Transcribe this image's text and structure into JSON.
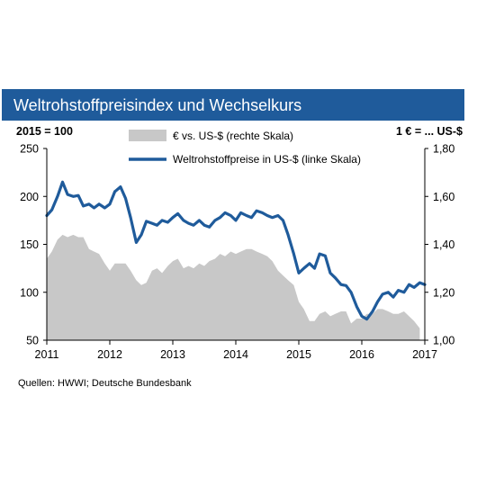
{
  "title": "Weltrohstoffpreisindex und Wechselkurs",
  "unit_left": "2015 = 100",
  "unit_right": "1 € = ... US-$",
  "source": "Quellen: HWWI; Deutsche Bundesbank",
  "chart_data": {
    "type": "line",
    "x_ticks": [
      "2011",
      "2012",
      "2013",
      "2014",
      "2015",
      "2016",
      "2017"
    ],
    "x_range": [
      2011,
      2017
    ],
    "y_left": {
      "ticks": [
        "250",
        "200",
        "150",
        "100",
        "50"
      ],
      "range": [
        50,
        250
      ]
    },
    "y_right": {
      "ticks": [
        "1,80",
        "1,60",
        "1,40",
        "1,20",
        "1,00"
      ],
      "range": [
        1.0,
        1.8
      ]
    },
    "grid": false,
    "series": [
      {
        "name": "€ vs. US-$ (rechte Skala)",
        "type": "area",
        "axis": "right",
        "color": "#c8c8c8",
        "x": [
          2011.0,
          2011.08,
          2011.17,
          2011.25,
          2011.33,
          2011.42,
          2011.5,
          2011.58,
          2011.67,
          2011.75,
          2011.83,
          2011.92,
          2012.0,
          2012.08,
          2012.17,
          2012.25,
          2012.33,
          2012.42,
          2012.5,
          2012.58,
          2012.67,
          2012.75,
          2012.83,
          2012.92,
          2013.0,
          2013.08,
          2013.17,
          2013.25,
          2013.33,
          2013.42,
          2013.5,
          2013.58,
          2013.67,
          2013.75,
          2013.83,
          2013.92,
          2014.0,
          2014.08,
          2014.17,
          2014.25,
          2014.33,
          2014.42,
          2014.5,
          2014.58,
          2014.67,
          2014.75,
          2014.83,
          2014.92,
          2015.0,
          2015.08,
          2015.17,
          2015.25,
          2015.33,
          2015.42,
          2015.5,
          2015.58,
          2015.67,
          2015.75,
          2015.83,
          2015.92,
          2016.0,
          2016.08,
          2016.17,
          2016.25,
          2016.33,
          2016.42,
          2016.5,
          2016.58,
          2016.67,
          2016.75,
          2016.83,
          2016.92
        ],
        "values": [
          1.34,
          1.37,
          1.42,
          1.44,
          1.43,
          1.44,
          1.43,
          1.43,
          1.38,
          1.37,
          1.36,
          1.32,
          1.29,
          1.32,
          1.32,
          1.32,
          1.29,
          1.25,
          1.23,
          1.24,
          1.29,
          1.3,
          1.28,
          1.31,
          1.33,
          1.34,
          1.3,
          1.31,
          1.3,
          1.32,
          1.31,
          1.33,
          1.34,
          1.36,
          1.35,
          1.37,
          1.36,
          1.37,
          1.38,
          1.38,
          1.37,
          1.36,
          1.35,
          1.33,
          1.29,
          1.27,
          1.25,
          1.23,
          1.16,
          1.13,
          1.08,
          1.08,
          1.11,
          1.12,
          1.1,
          1.11,
          1.12,
          1.12,
          1.07,
          1.09,
          1.09,
          1.11,
          1.11,
          1.13,
          1.13,
          1.12,
          1.11,
          1.11,
          1.12,
          1.1,
          1.08,
          1.05
        ]
      },
      {
        "name": "Weltrohstoffpreise in US-$ (linke Skala)",
        "type": "line",
        "axis": "left",
        "color": "#1f5b9b",
        "x": [
          2011.0,
          2011.08,
          2011.17,
          2011.25,
          2011.33,
          2011.42,
          2011.5,
          2011.58,
          2011.67,
          2011.75,
          2011.83,
          2011.92,
          2012.0,
          2012.08,
          2012.17,
          2012.25,
          2012.33,
          2012.42,
          2012.5,
          2012.58,
          2012.67,
          2012.75,
          2012.83,
          2012.92,
          2013.0,
          2013.08,
          2013.17,
          2013.25,
          2013.33,
          2013.42,
          2013.5,
          2013.58,
          2013.67,
          2013.75,
          2013.83,
          2013.92,
          2014.0,
          2014.08,
          2014.17,
          2014.25,
          2014.33,
          2014.42,
          2014.5,
          2014.58,
          2014.67,
          2014.75,
          2014.83,
          2014.92,
          2015.0,
          2015.08,
          2015.17,
          2015.25,
          2015.33,
          2015.42,
          2015.5,
          2015.58,
          2015.67,
          2015.75,
          2015.83,
          2015.92,
          2016.0,
          2016.08,
          2016.17,
          2016.25,
          2016.33,
          2016.42,
          2016.5,
          2016.58,
          2016.67,
          2016.75,
          2016.83,
          2016.92,
          2017.0
        ],
        "values": [
          180,
          186,
          200,
          215,
          202,
          200,
          201,
          190,
          192,
          188,
          192,
          188,
          192,
          205,
          210,
          198,
          178,
          152,
          160,
          174,
          172,
          170,
          175,
          173,
          178,
          182,
          175,
          172,
          170,
          175,
          170,
          168,
          175,
          178,
          183,
          180,
          175,
          183,
          180,
          178,
          185,
          183,
          180,
          178,
          180,
          175,
          160,
          140,
          120,
          125,
          130,
          125,
          140,
          138,
          120,
          115,
          108,
          107,
          100,
          85,
          75,
          72,
          80,
          90,
          98,
          100,
          95,
          102,
          100,
          108,
          105,
          110,
          108
        ]
      }
    ]
  }
}
